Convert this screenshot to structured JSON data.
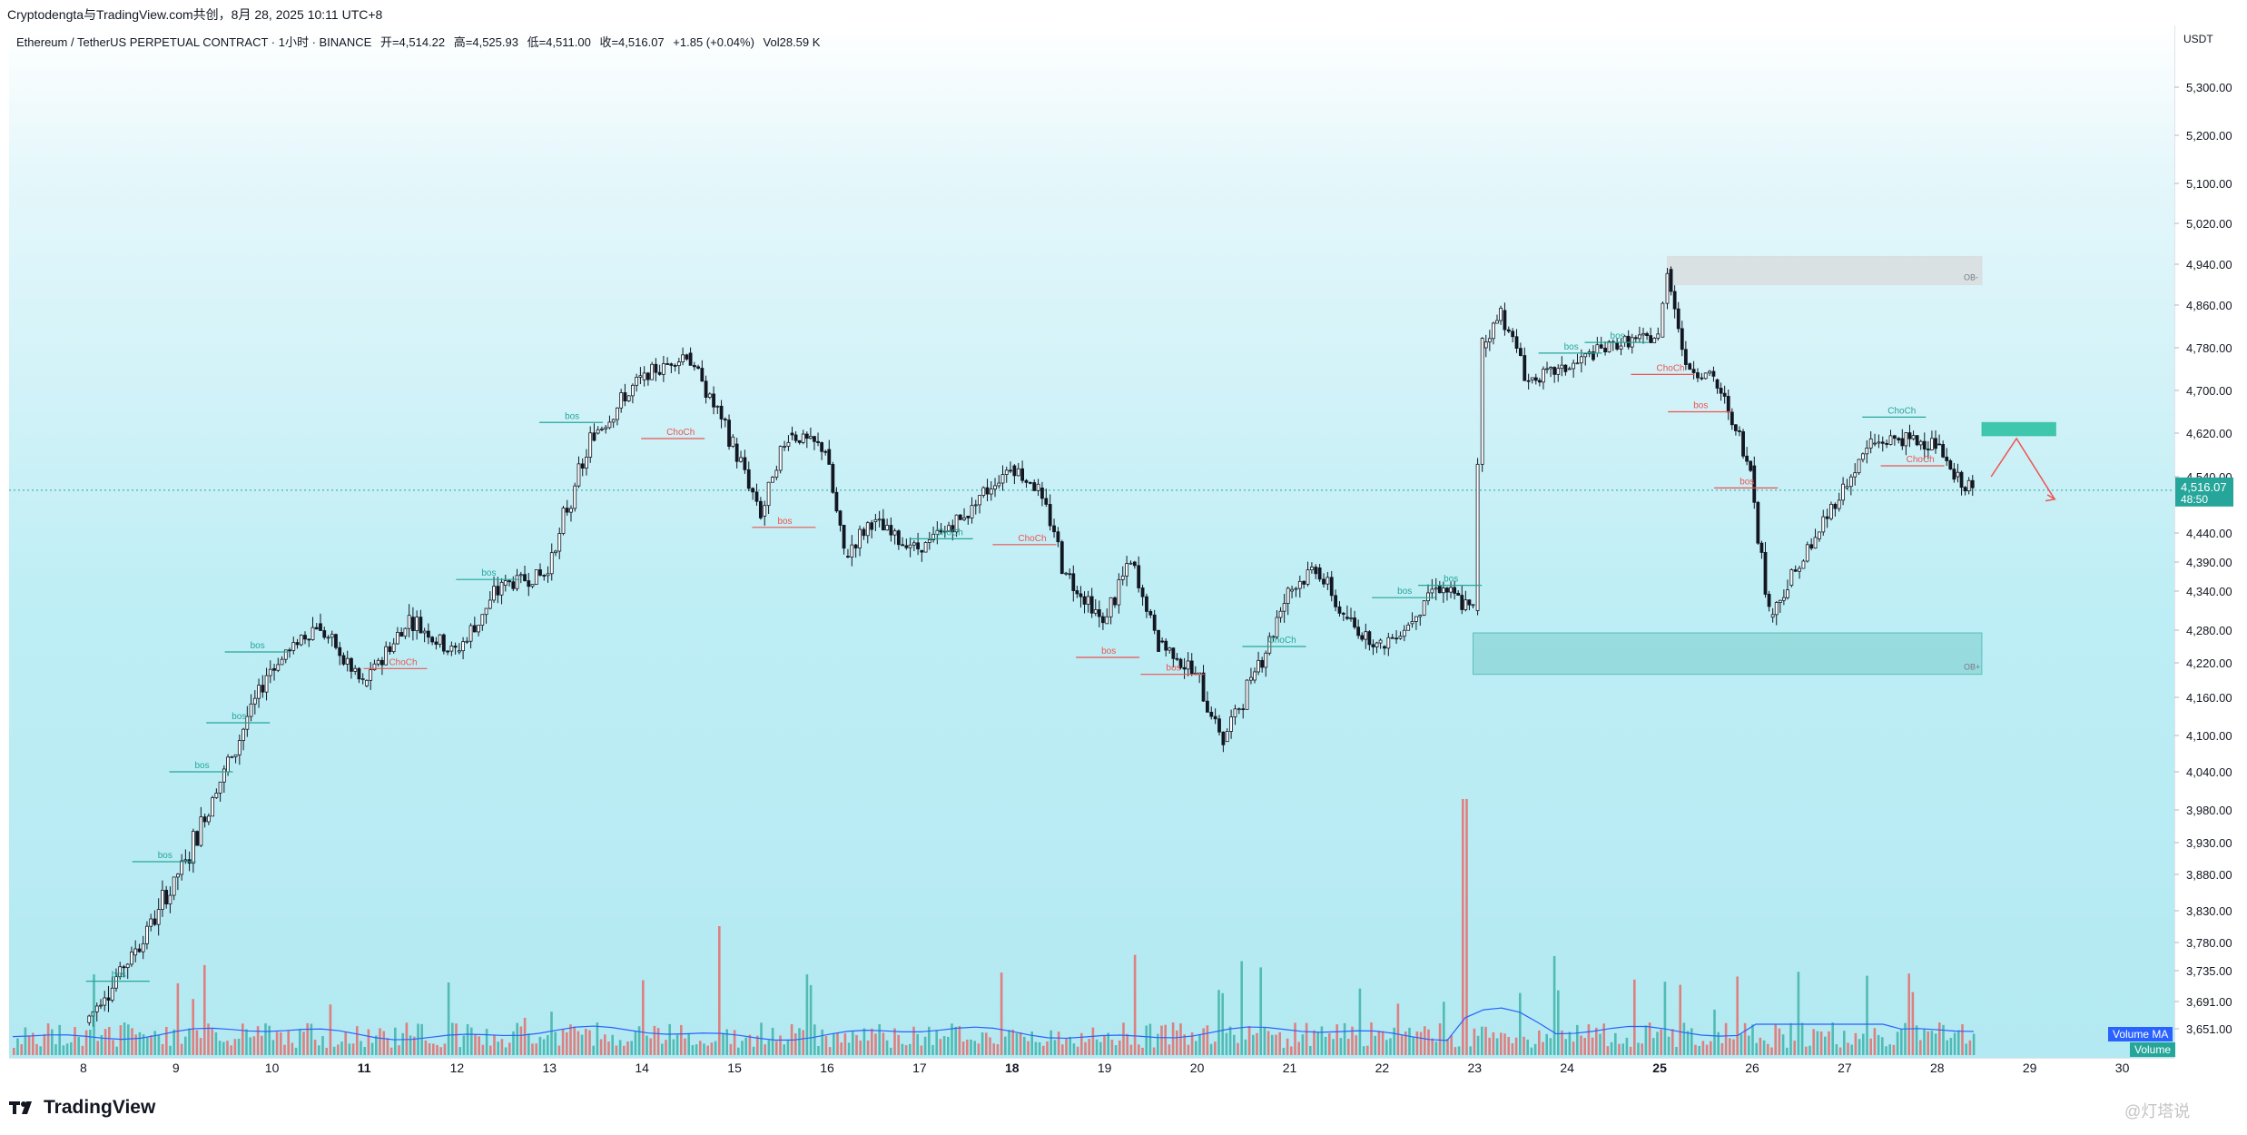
{
  "caption": "Cryptodengta与TradingView.com共创，8月 28, 2025 10:11 UTC+8",
  "header": {
    "symbol": "Ethereum / TetherUS PERPETUAL CONTRACT · 1小时 · BINANCE",
    "open": "开=4,514.22",
    "high": "高=4,525.93",
    "low": "低=4,511.00",
    "close": "收=4,516.07",
    "change": "+1.85 (+0.04%)",
    "vol": "Vol28.59 K"
  },
  "unit": "USDT",
  "current_price": "4,516.07",
  "countdown": "48:50",
  "footer_brand": "TradingView",
  "watermark": "@灯塔说",
  "volume_ma_label": "Volume MA",
  "volume_label": "Volume",
  "colors": {
    "up": "#26a69a",
    "down": "#ef5350",
    "candle": "#131722",
    "bos": "#26a69a",
    "choch": "#ef5350",
    "ob_green": "#26a69a",
    "ob_gray": "#d9d4d4",
    "target": "#26c0a0",
    "ma_line": "#2962ff"
  },
  "chart_data": {
    "type": "candlestick",
    "title": "Ethereum / TetherUS PERPETUAL CONTRACT · 1小时 · BINANCE",
    "y_axis_ticks": [
      "5,300.00",
      "5,200.00",
      "5,100.00",
      "5,020.00",
      "4,940.00",
      "4,860.00",
      "4,780.00",
      "4,700.00",
      "4,620.00",
      "4,540.00",
      "4,440.00",
      "4,390.00",
      "4,340.00",
      "4,280.00",
      "4,220.00",
      "4,160.00",
      "4,100.00",
      "4,040.00",
      "3,980.00",
      "3,930.00",
      "3,880.00",
      "3,830.00",
      "3,780.00",
      "3,735.00",
      "3,691.00",
      "3,651.00"
    ],
    "x_axis_ticks": [
      "8",
      "9",
      "10",
      "11",
      "12",
      "13",
      "14",
      "15",
      "16",
      "17",
      "18",
      "19",
      "20",
      "21",
      "22",
      "23",
      "24",
      "25",
      "26",
      "27",
      "28",
      "29",
      "30"
    ],
    "bold_ticks": [
      "11",
      "18",
      "25"
    ],
    "price_path": [
      [
        "8",
        3660
      ],
      [
        "8.5",
        3760
      ],
      [
        "9",
        3880
      ],
      [
        "9.5",
        4040
      ],
      [
        "10",
        4210
      ],
      [
        "10.5",
        4290
      ],
      [
        "11",
        4180
      ],
      [
        "11.5",
        4300
      ],
      [
        "12",
        4240
      ],
      [
        "12.5",
        4350
      ],
      [
        "13",
        4370
      ],
      [
        "13.5",
        4620
      ],
      [
        "14",
        4720
      ],
      [
        "14.5",
        4770
      ],
      [
        "15",
        4600
      ],
      [
        "15.3",
        4470
      ],
      [
        "15.6",
        4620
      ],
      [
        "16",
        4590
      ],
      [
        "16.2",
        4400
      ],
      [
        "16.5",
        4460
      ],
      [
        "17",
        4410
      ],
      [
        "17.5",
        4470
      ],
      [
        "18",
        4560
      ],
      [
        "18.3",
        4520
      ],
      [
        "18.6",
        4370
      ],
      [
        "19",
        4290
      ],
      [
        "19.3",
        4390
      ],
      [
        "19.6",
        4260
      ],
      [
        "20",
        4200
      ],
      [
        "20.3",
        4090
      ],
      [
        "20.6",
        4190
      ],
      [
        "21",
        4340
      ],
      [
        "21.3",
        4380
      ],
      [
        "21.6",
        4300
      ],
      [
        "22",
        4250
      ],
      [
        "22.3",
        4290
      ],
      [
        "22.6",
        4350
      ],
      [
        "23",
        4310
      ],
      [
        "23.1",
        4780
      ],
      [
        "23.3",
        4850
      ],
      [
        "23.6",
        4720
      ],
      [
        "24",
        4740
      ],
      [
        "24.3",
        4770
      ],
      [
        "24.6",
        4790
      ],
      [
        "25",
        4800
      ],
      [
        "25.1",
        4930
      ],
      [
        "25.3",
        4750
      ],
      [
        "25.6",
        4720
      ],
      [
        "26",
        4560
      ],
      [
        "26.2",
        4300
      ],
      [
        "26.4",
        4350
      ],
      [
        "26.7",
        4430
      ],
      [
        "27",
        4520
      ],
      [
        "27.3",
        4600
      ],
      [
        "27.6",
        4610
      ],
      [
        "28",
        4600
      ],
      [
        "28.2",
        4540
      ],
      [
        "28.4",
        4516
      ]
    ],
    "annotations": [
      {
        "label": "bos",
        "x": "8.4",
        "price": 3720,
        "type": "bos"
      },
      {
        "label": "bos",
        "x": "8.9",
        "price": 3900,
        "type": "bos"
      },
      {
        "label": "bos",
        "x": "9.3",
        "price": 4040,
        "type": "bos"
      },
      {
        "label": "bos",
        "x": "9.7",
        "price": 4120,
        "type": "bos"
      },
      {
        "label": "bos",
        "x": "9.9",
        "price": 4240,
        "type": "bos"
      },
      {
        "label": "ChoCh",
        "x": "11.4",
        "price": 4210,
        "type": "choch"
      },
      {
        "label": "bos",
        "x": "12.4",
        "price": 4360,
        "type": "bos"
      },
      {
        "label": "bos",
        "x": "13.3",
        "price": 4640,
        "type": "bos"
      },
      {
        "label": "ChoCh",
        "x": "14.4",
        "price": 4610,
        "type": "choch"
      },
      {
        "label": "bos",
        "x": "15.6",
        "price": 4450,
        "type": "choch"
      },
      {
        "label": "ChoCh",
        "x": "17.3",
        "price": 4430,
        "type": "bos"
      },
      {
        "label": "ChoCh",
        "x": "18.2",
        "price": 4420,
        "type": "choch"
      },
      {
        "label": "bos",
        "x": "19.1",
        "price": 4230,
        "type": "choch"
      },
      {
        "label": "bos",
        "x": "19.8",
        "price": 4200,
        "type": "choch"
      },
      {
        "label": "ChoCh",
        "x": "20.9",
        "price": 4250,
        "type": "bos"
      },
      {
        "label": "bos",
        "x": "22.3",
        "price": 4330,
        "type": "bos"
      },
      {
        "label": "bos",
        "x": "22.8",
        "price": 4350,
        "type": "bos"
      },
      {
        "label": "bos",
        "x": "24.1",
        "price": 4770,
        "type": "bos"
      },
      {
        "label": "bos",
        "x": "24.6",
        "price": 4790,
        "type": "bos"
      },
      {
        "label": "ChoCh",
        "x": "25.1",
        "price": 4730,
        "type": "choch"
      },
      {
        "label": "bos",
        "x": "25.5",
        "price": 4660,
        "type": "choch"
      },
      {
        "label": "bos",
        "x": "26",
        "price": 4520,
        "type": "choch"
      },
      {
        "label": "ChoCh",
        "x": "27.6",
        "price": 4650,
        "type": "bos"
      },
      {
        "label": "ChoCh",
        "x": "27.8",
        "price": 4560,
        "type": "choch"
      }
    ],
    "zones": [
      {
        "label": "OB+",
        "x0": "23",
        "x1": "28.5",
        "price_lo": 4200,
        "price_hi": 4275,
        "type": "ob_green"
      },
      {
        "label": "OB-",
        "x0": "25.1",
        "x1": "28.5",
        "price_lo": 4900,
        "price_hi": 4955,
        "type": "ob_gray"
      },
      {
        "label": "",
        "x0": "28.5",
        "x1": "29.3",
        "price_lo": 4615,
        "price_hi": 4640,
        "type": "target"
      }
    ],
    "volume_note": "Volume bars with Volume MA overlay at bottom; spike near 23"
  }
}
